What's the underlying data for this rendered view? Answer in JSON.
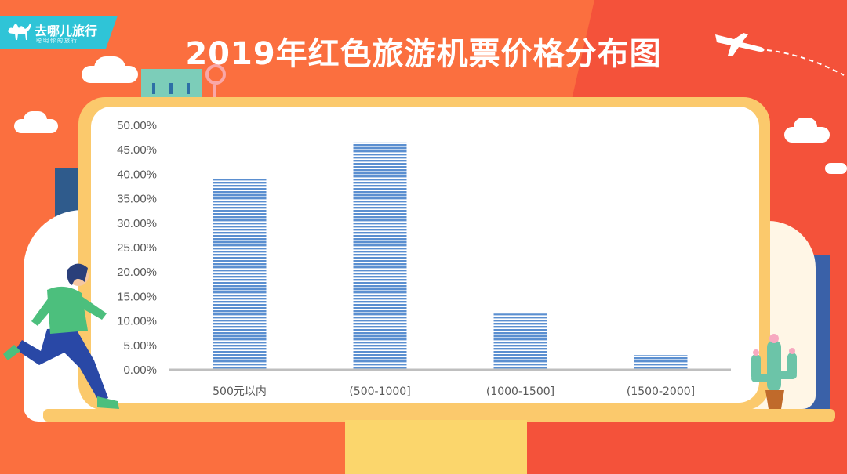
{
  "brand": {
    "name": "去哪儿旅行",
    "tagline": "聪明你的旅行"
  },
  "title": "2019年红色旅游机票价格分布图",
  "colors": {
    "background": "#fb6f3f",
    "accent": "#f4523a",
    "bar": "#5b8fd0",
    "monitor": "#fbc96c",
    "logo": "#2fc4d7"
  },
  "chart_data": {
    "type": "bar",
    "title": "2019年红色旅游机票价格分布图",
    "categories": [
      "500元以内",
      "(500-1000]",
      "(1000-1500]",
      "(1500-2000]"
    ],
    "values": [
      0.39,
      0.465,
      0.115,
      0.03
    ],
    "ylim": [
      0,
      0.5
    ],
    "yticks": [
      0,
      0.05,
      0.1,
      0.15,
      0.2,
      0.25,
      0.3,
      0.35,
      0.4,
      0.45,
      0.5
    ],
    "ytick_labels": [
      "0.00%",
      "5.00%",
      "10.00%",
      "15.00%",
      "20.00%",
      "25.00%",
      "30.00%",
      "35.00%",
      "40.00%",
      "45.00%",
      "50.00%"
    ],
    "xlabel": "",
    "ylabel": "",
    "grid": false,
    "legend": "none",
    "bar_style": "horizontal-stripes"
  }
}
